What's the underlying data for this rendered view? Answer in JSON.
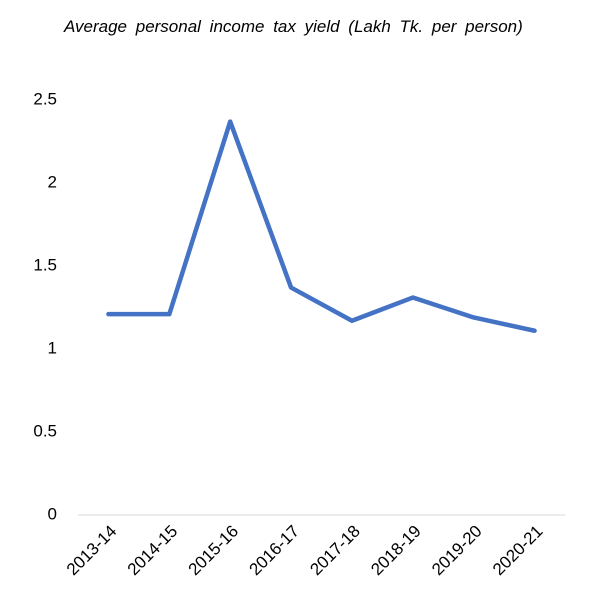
{
  "chart_data": {
    "type": "line",
    "title": "Average personal income tax yield (Lakh Tk. per person)",
    "categories": [
      "2013-14",
      "2014-15",
      "2015-16",
      "2016-17",
      "2017-18",
      "2018-19",
      "2019-20",
      "2020-21"
    ],
    "series": [
      {
        "name": "Average personal income tax yield",
        "color": "#4472c4",
        "values": [
          1.21,
          1.21,
          2.37,
          1.37,
          1.17,
          1.31,
          1.19,
          1.11
        ]
      }
    ],
    "ylim": [
      0,
      2.5
    ],
    "yticks": [
      0,
      0.5,
      1,
      1.5,
      2,
      2.5
    ],
    "grid": false
  }
}
